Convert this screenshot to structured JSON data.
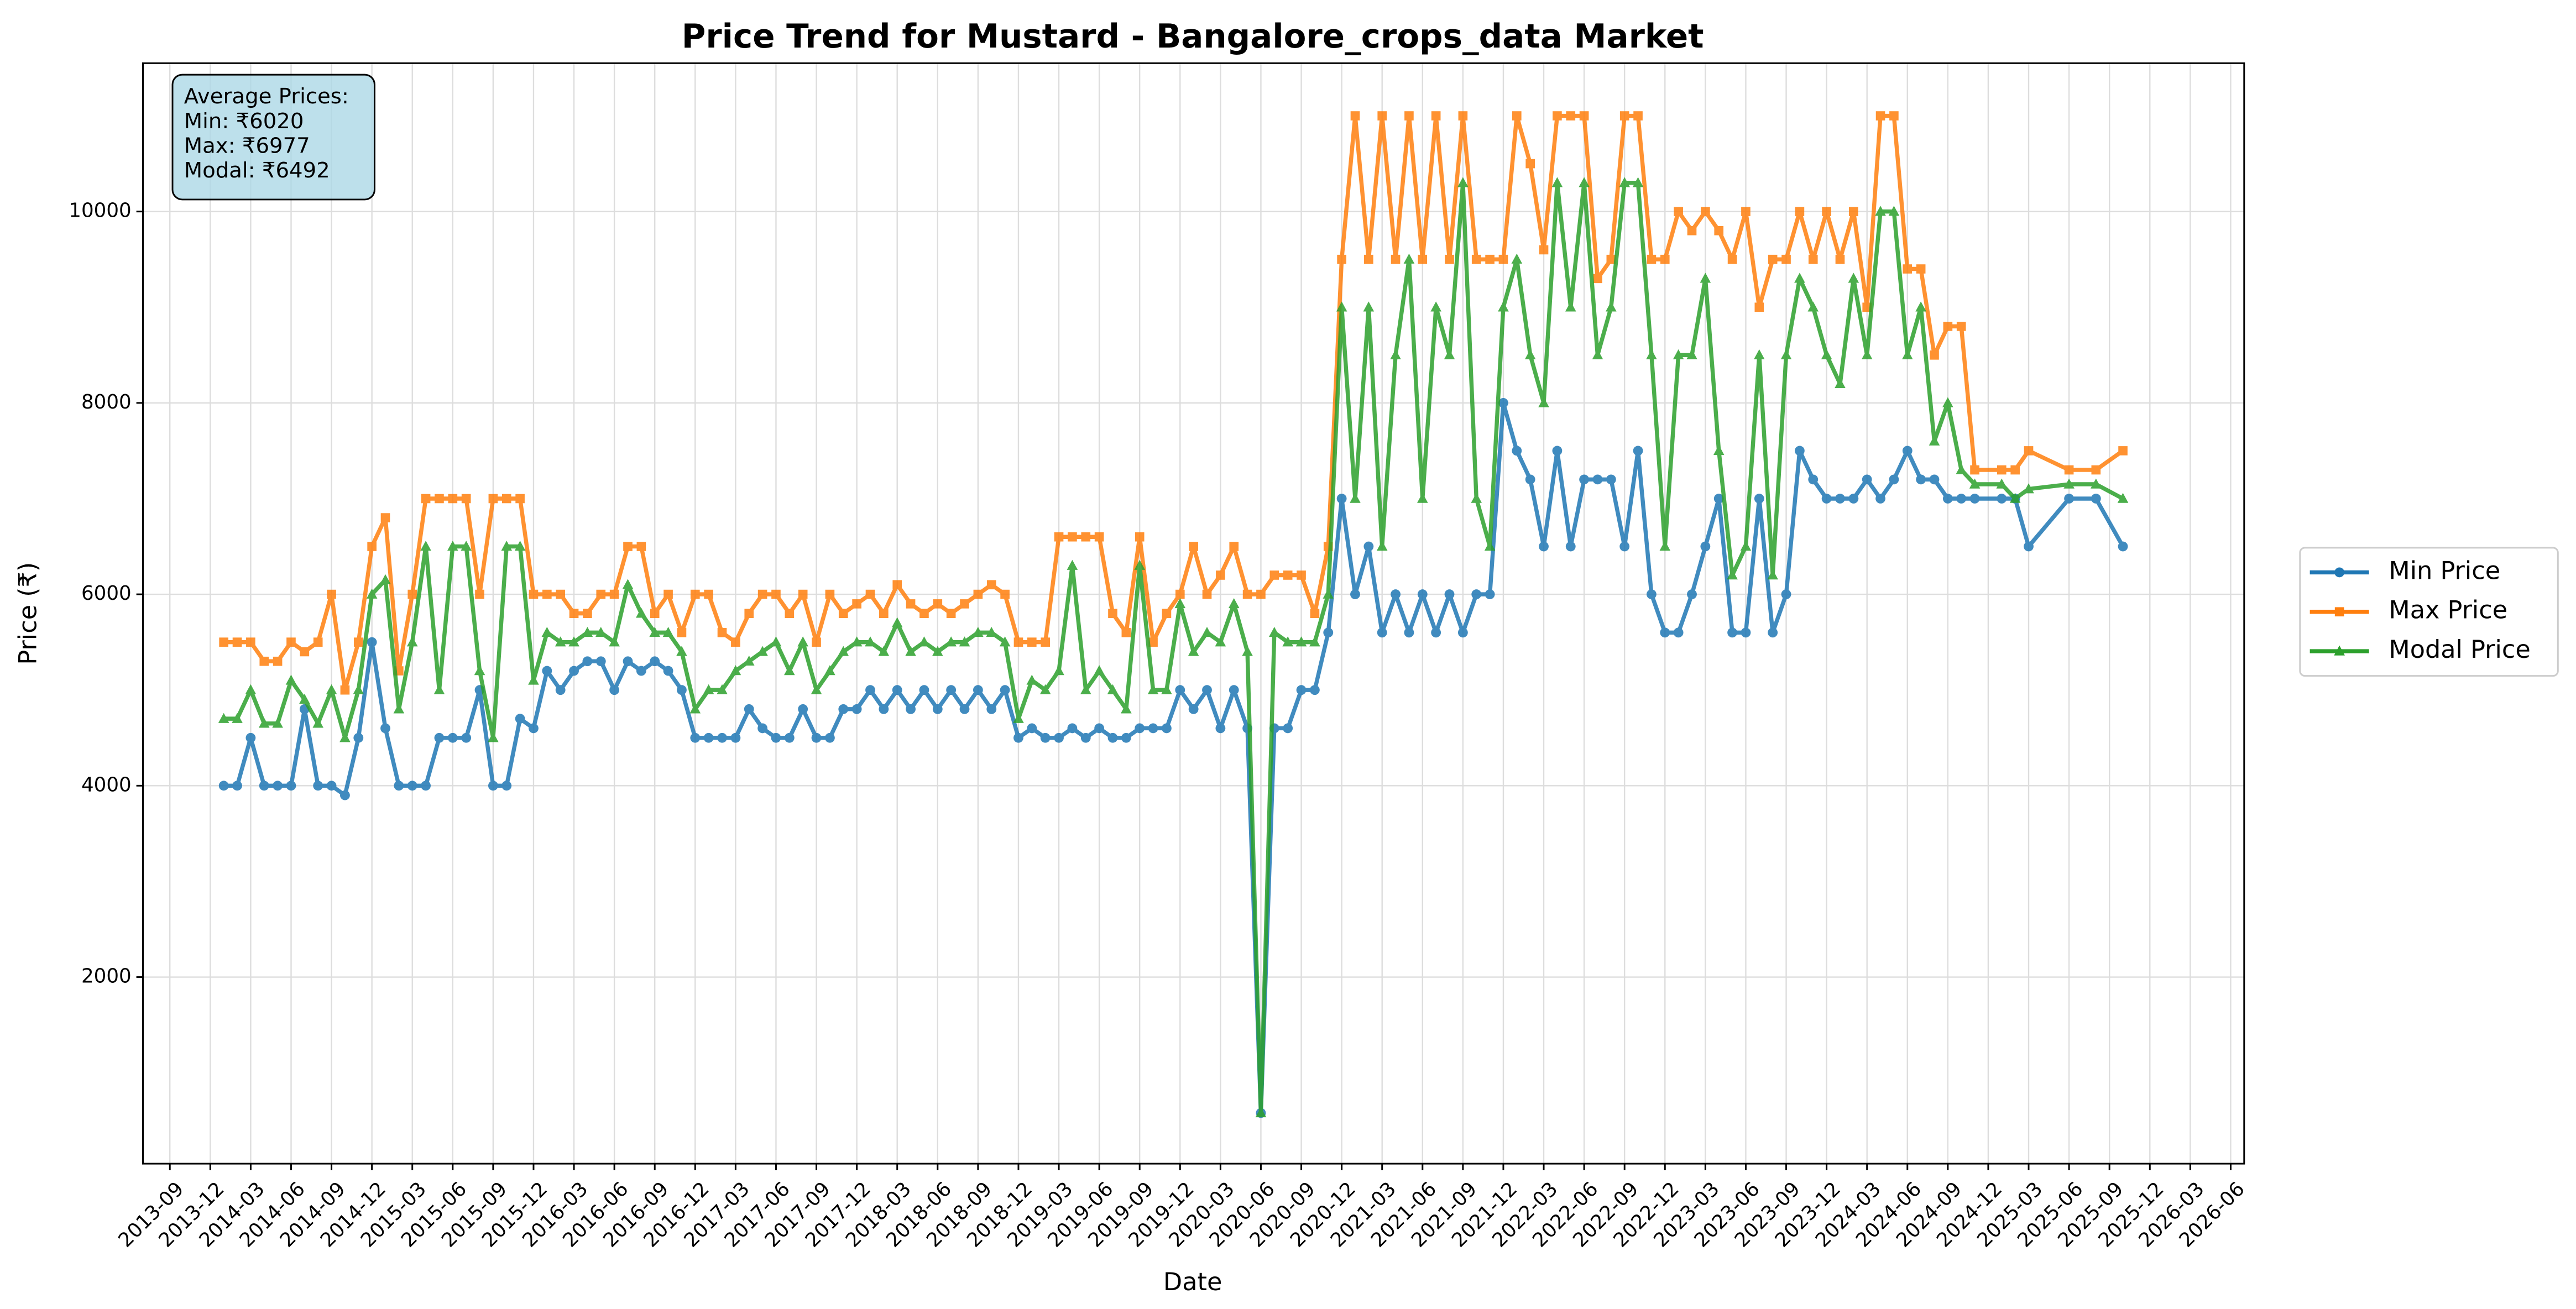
{
  "chart_data": {
    "type": "line",
    "title": "Price Trend for Mustard - Bangalore_crops_data Market",
    "xlabel": "Date",
    "ylabel": "Price (₹)",
    "stats_box": [
      "Average Prices:",
      "Min: ₹6020",
      "Max: ₹6977",
      "Modal: ₹6492"
    ],
    "x": [
      "2014-01",
      "2014-02",
      "2014-03",
      "2014-04",
      "2014-05",
      "2014-06",
      "2014-07",
      "2014-08",
      "2014-09",
      "2014-10",
      "2014-11",
      "2014-12",
      "2015-01",
      "2015-02",
      "2015-03",
      "2015-04",
      "2015-05",
      "2015-06",
      "2015-07",
      "2015-08",
      "2015-09",
      "2015-10",
      "2015-11",
      "2015-12",
      "2016-01",
      "2016-02",
      "2016-03",
      "2016-04",
      "2016-05",
      "2016-06",
      "2016-07",
      "2016-08",
      "2016-09",
      "2016-10",
      "2016-11",
      "2016-12",
      "2017-01",
      "2017-02",
      "2017-03",
      "2017-04",
      "2017-05",
      "2017-06",
      "2017-07",
      "2017-08",
      "2017-09",
      "2017-10",
      "2017-11",
      "2017-12",
      "2018-01",
      "2018-02",
      "2018-03",
      "2018-04",
      "2018-05",
      "2018-06",
      "2018-07",
      "2018-08",
      "2018-09",
      "2018-10",
      "2018-11",
      "2018-12",
      "2019-01",
      "2019-02",
      "2019-03",
      "2019-04",
      "2019-05",
      "2019-06",
      "2019-07",
      "2019-08",
      "2019-09",
      "2019-10",
      "2019-11",
      "2019-12",
      "2020-01",
      "2020-02",
      "2020-03",
      "2020-04",
      "2020-05",
      "2020-06",
      "2020-07",
      "2020-08",
      "2020-09",
      "2020-10",
      "2020-11",
      "2020-12",
      "2021-01",
      "2021-02",
      "2021-03",
      "2021-04",
      "2021-05",
      "2021-06",
      "2021-07",
      "2021-08",
      "2021-09",
      "2021-10",
      "2021-11",
      "2021-12",
      "2022-01",
      "2022-02",
      "2022-03",
      "2022-04",
      "2022-05",
      "2022-06",
      "2022-07",
      "2022-08",
      "2022-09",
      "2022-10",
      "2022-11",
      "2022-12",
      "2023-01",
      "2023-02",
      "2023-03",
      "2023-04",
      "2023-05",
      "2023-06",
      "2023-07",
      "2023-08",
      "2023-09",
      "2023-10",
      "2023-11",
      "2023-12",
      "2024-01",
      "2024-02",
      "2024-03",
      "2024-04",
      "2024-05",
      "2024-06",
      "2024-07",
      "2024-08",
      "2024-09",
      "2024-10",
      "2024-11",
      "2025-01",
      "2025-02",
      "2025-03",
      "2025-06",
      "2025-08",
      "2025-10"
    ],
    "series": [
      {
        "name": "Min Price",
        "color": "#1f77b4",
        "marker": "circle",
        "values": [
          4000,
          4000,
          4500,
          4000,
          4000,
          4000,
          4800,
          4000,
          4000,
          3900,
          4500,
          5500,
          4600,
          4000,
          4000,
          4000,
          4500,
          4500,
          4500,
          5000,
          4000,
          4000,
          4700,
          4600,
          5200,
          5000,
          5200,
          5300,
          5300,
          5000,
          5300,
          5200,
          5300,
          5200,
          5000,
          4500,
          4500,
          4500,
          4500,
          4800,
          4600,
          4500,
          4500,
          4800,
          4500,
          4500,
          4800,
          4800,
          5000,
          4800,
          5000,
          4800,
          5000,
          4800,
          5000,
          4800,
          5000,
          4800,
          5000,
          4500,
          4600,
          4500,
          4500,
          4600,
          4500,
          4600,
          4500,
          4500,
          4600,
          4600,
          4600,
          5000,
          4800,
          5000,
          4600,
          5000,
          4600,
          580,
          4600,
          4600,
          5000,
          5000,
          5600,
          7000,
          6000,
          6500,
          5600,
          6000,
          5600,
          6000,
          5600,
          6000,
          5600,
          6000,
          6000,
          8000,
          7500,
          7200,
          6500,
          7500,
          6500,
          7200,
          7200,
          7200,
          6500,
          7500,
          6000,
          5600,
          5600,
          6000,
          6500,
          7000,
          5600,
          5600,
          7000,
          5600,
          6000,
          7500,
          7200,
          7000,
          7000,
          7000,
          7200,
          7000,
          7200,
          7500,
          7200,
          7200,
          7000,
          7000,
          7000,
          7000,
          7000,
          6500,
          7000,
          7000,
          6500
        ]
      },
      {
        "name": "Max Price",
        "color": "#ff7f0e",
        "marker": "square",
        "values": [
          5500,
          5500,
          5500,
          5300,
          5300,
          5500,
          5400,
          5500,
          6000,
          5000,
          5500,
          6500,
          6800,
          5200,
          6000,
          7000,
          7000,
          7000,
          7000,
          6000,
          7000,
          7000,
          7000,
          6000,
          6000,
          6000,
          5800,
          5800,
          6000,
          6000,
          6500,
          6500,
          5800,
          6000,
          5600,
          6000,
          6000,
          5600,
          5500,
          5800,
          6000,
          6000,
          5800,
          6000,
          5500,
          6000,
          5800,
          5900,
          6000,
          5800,
          6100,
          5900,
          5800,
          5900,
          5800,
          5900,
          6000,
          6100,
          6000,
          5500,
          5500,
          5500,
          6600,
          6600,
          6600,
          6600,
          5800,
          5600,
          6600,
          5500,
          5800,
          6000,
          6500,
          6000,
          6200,
          6500,
          6000,
          6000,
          6200,
          6200,
          6200,
          5800,
          6500,
          9500,
          11000,
          9500,
          11000,
          9500,
          11000,
          9500,
          11000,
          9500,
          11000,
          9500,
          9500,
          9500,
          11000,
          10500,
          9600,
          11000,
          11000,
          11000,
          9300,
          9500,
          11000,
          11000,
          9500,
          9500,
          10000,
          9800,
          10000,
          9800,
          9500,
          10000,
          9000,
          9500,
          9500,
          10000,
          9500,
          10000,
          9500,
          10000,
          9000,
          11000,
          11000,
          9400,
          9400,
          8500,
          8800,
          8800,
          7300,
          7300,
          7300,
          7500,
          7300,
          7300,
          7500
        ]
      },
      {
        "name": "Modal Price",
        "color": "#2ca02c",
        "marker": "triangle",
        "values": [
          4700,
          4700,
          5000,
          4650,
          4650,
          5100,
          4900,
          4650,
          5000,
          4500,
          5000,
          6000,
          6150,
          4800,
          5500,
          6500,
          5000,
          6500,
          6500,
          5200,
          4500,
          6500,
          6500,
          5100,
          5600,
          5500,
          5500,
          5600,
          5600,
          5500,
          6100,
          5800,
          5600,
          5600,
          5400,
          4800,
          5000,
          5000,
          5200,
          5300,
          5400,
          5500,
          5200,
          5500,
          5000,
          5200,
          5400,
          5500,
          5500,
          5400,
          5700,
          5400,
          5500,
          5400,
          5500,
          5500,
          5600,
          5600,
          5500,
          4700,
          5100,
          5000,
          5200,
          6300,
          5000,
          5200,
          5000,
          4800,
          6300,
          5000,
          5000,
          5900,
          5400,
          5600,
          5500,
          5900,
          5400,
          580,
          5600,
          5500,
          5500,
          5500,
          6000,
          9000,
          7000,
          9000,
          6500,
          8500,
          9500,
          7000,
          9000,
          8500,
          10300,
          7000,
          6500,
          9000,
          9500,
          8500,
          8000,
          10300,
          9000,
          10300,
          8500,
          9000,
          10300,
          10300,
          8500,
          6500,
          8500,
          8500,
          9300,
          7500,
          6200,
          6500,
          8500,
          6200,
          8500,
          9300,
          9000,
          8500,
          8200,
          9300,
          8500,
          10000,
          10000,
          8500,
          9000,
          7600,
          8000,
          7300,
          7150,
          7150,
          7000,
          7100,
          7150,
          7150,
          7000
        ]
      }
    ],
    "xlim": [
      "2013-07",
      "2026-07"
    ],
    "xticks": [
      "2013-09",
      "2013-12",
      "2014-03",
      "2014-06",
      "2014-09",
      "2014-12",
      "2015-03",
      "2015-06",
      "2015-09",
      "2015-12",
      "2016-03",
      "2016-06",
      "2016-09",
      "2016-12",
      "2017-03",
      "2017-06",
      "2017-09",
      "2017-12",
      "2018-03",
      "2018-06",
      "2018-09",
      "2018-12",
      "2019-03",
      "2019-06",
      "2019-09",
      "2019-12",
      "2020-03",
      "2020-06",
      "2020-09",
      "2020-12",
      "2021-03",
      "2021-06",
      "2021-09",
      "2021-12",
      "2022-03",
      "2022-06",
      "2022-09",
      "2022-12",
      "2023-03",
      "2023-06",
      "2023-09",
      "2023-12",
      "2024-03",
      "2024-06",
      "2024-09",
      "2024-12",
      "2025-03",
      "2025-06",
      "2025-09",
      "2025-12",
      "2026-03",
      "2026-06"
    ],
    "ylim": [
      50,
      11550
    ],
    "yticks": [
      2000,
      4000,
      6000,
      8000,
      10000
    ],
    "grid": true,
    "legend": "right"
  }
}
